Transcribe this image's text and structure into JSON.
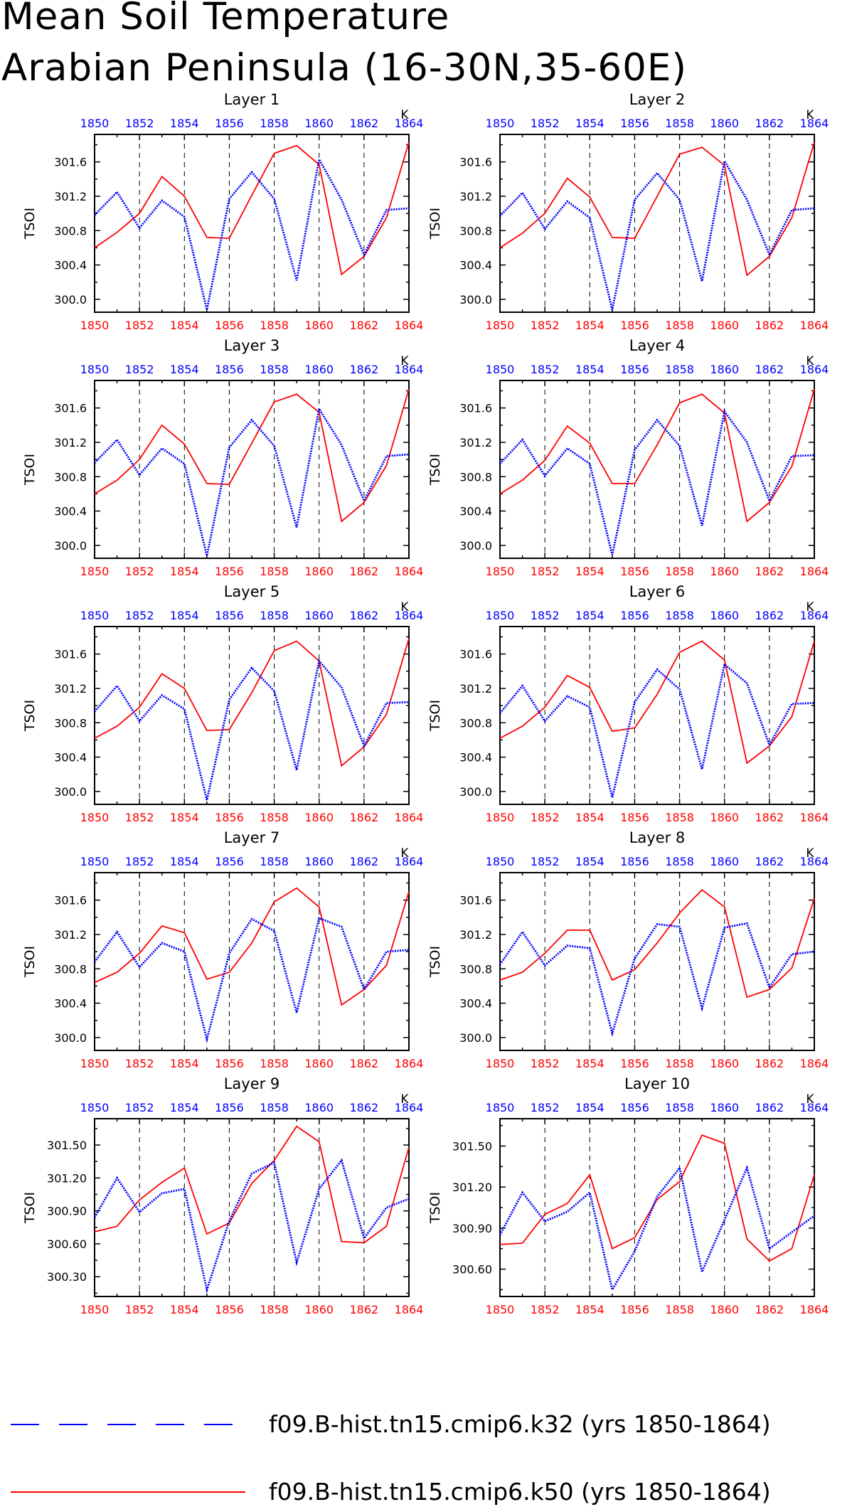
{
  "header": {
    "title_line1": "Mean Soil Temperature",
    "title_line2": "Arabian Peninsula (16-30N,35-60E)"
  },
  "legend": {
    "position": "bottom",
    "entries": [
      {
        "label": "f09.B-hist.tn15.cmip6.k32 (yrs 1850-1864)",
        "color": "#0000ff",
        "style": "dashed"
      },
      {
        "label": "f09.B-hist.tn15.cmip6.k50 (yrs 1850-1864)",
        "color": "#ff0000",
        "style": "solid"
      }
    ]
  },
  "colors": {
    "k32": "#0000ff",
    "k50": "#ff0000",
    "axis": "#000000",
    "grid": "#000000"
  },
  "chart_data": [
    {
      "type": "line",
      "title": "Layer 1",
      "xlabel": "",
      "ylabel": "TSOI",
      "top_axis_label": "K",
      "x": [
        1850,
        1851,
        1852,
        1853,
        1854,
        1855,
        1856,
        1857,
        1858,
        1859,
        1860,
        1861,
        1862,
        1863,
        1864
      ],
      "xlim": [
        1850,
        1864
      ],
      "ylim": [
        299.85,
        301.92
      ],
      "x_ticks": [
        1850,
        1852,
        1854,
        1856,
        1858,
        1860,
        1862,
        1864
      ],
      "y_ticks": [
        "300.0",
        "300.4",
        "300.8",
        "301.2",
        "301.6"
      ],
      "y_tick_values": [
        300.0,
        300.4,
        300.8,
        301.2,
        301.6
      ],
      "grid": "dashed vertical at even years",
      "series": [
        {
          "name": "f09.B-hist.tn15.cmip6.k32 (yrs 1850-1864)",
          "values": [
            300.98,
            301.25,
            300.83,
            301.15,
            300.96,
            299.88,
            301.17,
            301.48,
            301.17,
            300.22,
            301.63,
            301.16,
            300.52,
            301.04,
            301.06
          ]
        },
        {
          "name": "f09.B-hist.tn15.cmip6.k50 (yrs 1850-1864)",
          "values": [
            300.6,
            300.78,
            301.0,
            301.43,
            301.2,
            300.72,
            300.71,
            301.21,
            301.7,
            301.79,
            301.57,
            300.29,
            300.5,
            300.95,
            301.83
          ]
        }
      ]
    },
    {
      "type": "line",
      "title": "Layer 2",
      "xlabel": "",
      "ylabel": "TSOI",
      "top_axis_label": "K",
      "x": [
        1850,
        1851,
        1852,
        1853,
        1854,
        1855,
        1856,
        1857,
        1858,
        1859,
        1860,
        1861,
        1862,
        1863,
        1864
      ],
      "xlim": [
        1850,
        1864
      ],
      "ylim": [
        299.85,
        301.92
      ],
      "x_ticks": [
        1850,
        1852,
        1854,
        1856,
        1858,
        1860,
        1862,
        1864
      ],
      "y_ticks": [
        "300.0",
        "300.4",
        "300.8",
        "301.2",
        "301.6"
      ],
      "y_tick_values": [
        300.0,
        300.4,
        300.8,
        301.2,
        301.6
      ],
      "grid": "dashed vertical at even years",
      "series": [
        {
          "name": "f09.B-hist.tn15.cmip6.k32 (yrs 1850-1864)",
          "values": [
            300.97,
            301.24,
            300.82,
            301.14,
            300.95,
            299.88,
            301.16,
            301.47,
            301.16,
            300.21,
            301.61,
            301.16,
            300.52,
            301.04,
            301.06
          ]
        },
        {
          "name": "f09.B-hist.tn15.cmip6.k50 (yrs 1850-1864)",
          "values": [
            300.6,
            300.77,
            301.0,
            301.41,
            301.19,
            300.72,
            300.71,
            301.2,
            301.69,
            301.77,
            301.56,
            300.28,
            300.5,
            300.95,
            301.83
          ]
        }
      ]
    },
    {
      "type": "line",
      "title": "Layer 3",
      "xlabel": "",
      "ylabel": "TSOI",
      "top_axis_label": "K",
      "x": [
        1850,
        1851,
        1852,
        1853,
        1854,
        1855,
        1856,
        1857,
        1858,
        1859,
        1860,
        1861,
        1862,
        1863,
        1864
      ],
      "xlim": [
        1850,
        1864
      ],
      "ylim": [
        299.85,
        301.92
      ],
      "x_ticks": [
        1850,
        1852,
        1854,
        1856,
        1858,
        1860,
        1862,
        1864
      ],
      "y_ticks": [
        "300.0",
        "300.4",
        "300.8",
        "301.2",
        "301.6"
      ],
      "y_tick_values": [
        300.0,
        300.4,
        300.8,
        301.2,
        301.6
      ],
      "grid": "dashed vertical at even years",
      "series": [
        {
          "name": "f09.B-hist.tn15.cmip6.k32 (yrs 1850-1864)",
          "values": [
            300.96,
            301.23,
            300.82,
            301.13,
            300.95,
            299.88,
            301.14,
            301.46,
            301.16,
            300.21,
            301.59,
            301.17,
            300.52,
            301.04,
            301.06
          ]
        },
        {
          "name": "f09.B-hist.tn15.cmip6.k50 (yrs 1850-1864)",
          "values": [
            300.6,
            300.76,
            301.0,
            301.4,
            301.18,
            300.72,
            300.71,
            301.19,
            301.67,
            301.76,
            301.55,
            300.28,
            300.5,
            300.93,
            301.82
          ]
        }
      ]
    },
    {
      "type": "line",
      "title": "Layer 4",
      "xlabel": "",
      "ylabel": "TSOI",
      "top_axis_label": "K",
      "x": [
        1850,
        1851,
        1852,
        1853,
        1854,
        1855,
        1856,
        1857,
        1858,
        1859,
        1860,
        1861,
        1862,
        1863,
        1864
      ],
      "xlim": [
        1850,
        1864
      ],
      "ylim": [
        299.85,
        301.92
      ],
      "x_ticks": [
        1850,
        1852,
        1854,
        1856,
        1858,
        1860,
        1862,
        1864
      ],
      "y_ticks": [
        "300.0",
        "300.4",
        "300.8",
        "301.2",
        "301.6"
      ],
      "y_tick_values": [
        300.0,
        300.4,
        300.8,
        301.2,
        301.6
      ],
      "grid": "dashed vertical at even years",
      "series": [
        {
          "name": "f09.B-hist.tn15.cmip6.k32 (yrs 1850-1864)",
          "values": [
            300.95,
            301.23,
            300.81,
            301.13,
            300.95,
            299.89,
            301.11,
            301.46,
            301.16,
            300.23,
            301.56,
            301.2,
            300.52,
            301.04,
            301.05
          ]
        },
        {
          "name": "f09.B-hist.tn15.cmip6.k50 (yrs 1850-1864)",
          "values": [
            300.6,
            300.76,
            300.99,
            301.39,
            301.19,
            300.72,
            300.72,
            301.17,
            301.66,
            301.76,
            301.54,
            300.28,
            300.5,
            300.92,
            301.82
          ]
        }
      ]
    },
    {
      "type": "line",
      "title": "Layer 5",
      "xlabel": "",
      "ylabel": "TSOI",
      "top_axis_label": "K",
      "x": [
        1850,
        1851,
        1852,
        1853,
        1854,
        1855,
        1856,
        1857,
        1858,
        1859,
        1860,
        1861,
        1862,
        1863,
        1864
      ],
      "xlim": [
        1850,
        1864
      ],
      "ylim": [
        299.85,
        301.92
      ],
      "x_ticks": [
        1850,
        1852,
        1854,
        1856,
        1858,
        1860,
        1862,
        1864
      ],
      "y_ticks": [
        "300.0",
        "300.4",
        "300.8",
        "301.2",
        "301.6"
      ],
      "y_tick_values": [
        300.0,
        300.4,
        300.8,
        301.2,
        301.6
      ],
      "grid": "dashed vertical at even years",
      "series": [
        {
          "name": "f09.B-hist.tn15.cmip6.k32 (yrs 1850-1864)",
          "values": [
            300.93,
            301.23,
            300.82,
            301.12,
            300.96,
            299.9,
            301.07,
            301.44,
            301.17,
            300.25,
            301.52,
            301.21,
            300.53,
            301.03,
            301.04
          ]
        },
        {
          "name": "f09.B-hist.tn15.cmip6.k50 (yrs 1850-1864)",
          "values": [
            300.62,
            300.76,
            300.98,
            301.37,
            301.2,
            300.71,
            300.72,
            301.15,
            301.64,
            301.75,
            301.52,
            300.3,
            300.52,
            300.9,
            301.78
          ]
        }
      ]
    },
    {
      "type": "line",
      "title": "Layer 6",
      "xlabel": "",
      "ylabel": "TSOI",
      "top_axis_label": "K",
      "x": [
        1850,
        1851,
        1852,
        1853,
        1854,
        1855,
        1856,
        1857,
        1858,
        1859,
        1860,
        1861,
        1862,
        1863,
        1864
      ],
      "xlim": [
        1850,
        1864
      ],
      "ylim": [
        299.85,
        301.92
      ],
      "x_ticks": [
        1850,
        1852,
        1854,
        1856,
        1858,
        1860,
        1862,
        1864
      ],
      "y_ticks": [
        "300.0",
        "300.4",
        "300.8",
        "301.2",
        "301.6"
      ],
      "y_tick_values": [
        300.0,
        300.4,
        300.8,
        301.2,
        301.6
      ],
      "grid": "dashed vertical at even years",
      "series": [
        {
          "name": "f09.B-hist.tn15.cmip6.k32 (yrs 1850-1864)",
          "values": [
            300.91,
            301.23,
            300.82,
            301.11,
            300.98,
            299.93,
            301.04,
            301.42,
            301.19,
            300.26,
            301.48,
            301.26,
            300.54,
            301.02,
            301.03
          ]
        },
        {
          "name": "f09.B-hist.tn15.cmip6.k50 (yrs 1850-1864)",
          "values": [
            300.62,
            300.76,
            300.98,
            301.35,
            301.21,
            300.7,
            300.74,
            301.13,
            301.62,
            301.75,
            301.53,
            300.33,
            300.53,
            300.87,
            301.75
          ]
        }
      ]
    },
    {
      "type": "line",
      "title": "Layer 7",
      "xlabel": "",
      "ylabel": "TSOI",
      "top_axis_label": "K",
      "x": [
        1850,
        1851,
        1852,
        1853,
        1854,
        1855,
        1856,
        1857,
        1858,
        1859,
        1860,
        1861,
        1862,
        1863,
        1864
      ],
      "xlim": [
        1850,
        1864
      ],
      "ylim": [
        299.85,
        301.92
      ],
      "x_ticks": [
        1850,
        1852,
        1854,
        1856,
        1858,
        1860,
        1862,
        1864
      ],
      "y_ticks": [
        "300.0",
        "300.4",
        "300.8",
        "301.2",
        "301.6"
      ],
      "y_tick_values": [
        300.0,
        300.4,
        300.8,
        301.2,
        301.6
      ],
      "grid": "dashed vertical at even years",
      "series": [
        {
          "name": "f09.B-hist.tn15.cmip6.k32 (yrs 1850-1864)",
          "values": [
            300.88,
            301.23,
            300.82,
            301.1,
            301.0,
            299.98,
            300.98,
            301.38,
            301.24,
            300.29,
            301.39,
            301.29,
            300.56,
            301.0,
            301.02
          ]
        },
        {
          "name": "f09.B-hist.tn15.cmip6.k50 (yrs 1850-1864)",
          "values": [
            300.64,
            300.76,
            300.98,
            301.3,
            301.22,
            300.68,
            300.76,
            301.1,
            301.58,
            301.74,
            301.52,
            300.38,
            300.56,
            300.84,
            301.7
          ]
        }
      ]
    },
    {
      "type": "line",
      "title": "Layer 8",
      "xlabel": "",
      "ylabel": "TSOI",
      "top_axis_label": "K",
      "x": [
        1850,
        1851,
        1852,
        1853,
        1854,
        1855,
        1856,
        1857,
        1858,
        1859,
        1860,
        1861,
        1862,
        1863,
        1864
      ],
      "xlim": [
        1850,
        1864
      ],
      "ylim": [
        299.85,
        301.92
      ],
      "x_ticks": [
        1850,
        1852,
        1854,
        1856,
        1858,
        1860,
        1862,
        1864
      ],
      "y_ticks": [
        "300.0",
        "300.4",
        "300.8",
        "301.2",
        "301.6"
      ],
      "y_tick_values": [
        300.0,
        300.4,
        300.8,
        301.2,
        301.6
      ],
      "grid": "dashed vertical at even years",
      "series": [
        {
          "name": "f09.B-hist.tn15.cmip6.k32 (yrs 1850-1864)",
          "values": [
            300.85,
            301.23,
            300.84,
            301.07,
            301.04,
            300.05,
            300.92,
            301.32,
            301.29,
            300.34,
            301.28,
            301.33,
            300.58,
            300.97,
            301.0
          ]
        },
        {
          "name": "f09.B-hist.tn15.cmip6.k50 (yrs 1850-1864)",
          "values": [
            300.67,
            300.76,
            300.98,
            301.25,
            301.25,
            300.67,
            300.79,
            301.1,
            301.45,
            301.72,
            301.52,
            300.47,
            300.56,
            300.81,
            301.62
          ]
        }
      ]
    },
    {
      "type": "line",
      "title": "Layer 9",
      "xlabel": "",
      "ylabel": "TSOI",
      "top_axis_label": "K",
      "x": [
        1850,
        1851,
        1852,
        1853,
        1854,
        1855,
        1856,
        1857,
        1858,
        1859,
        1860,
        1861,
        1862,
        1863,
        1864
      ],
      "xlim": [
        1850,
        1864
      ],
      "ylim": [
        300.12,
        301.74
      ],
      "x_ticks": [
        1850,
        1852,
        1854,
        1856,
        1858,
        1860,
        1862,
        1864
      ],
      "y_ticks": [
        "300.30",
        "300.60",
        "300.90",
        "301.20",
        "301.50"
      ],
      "y_tick_values": [
        300.3,
        300.6,
        300.9,
        301.2,
        301.5
      ],
      "grid": "dashed vertical at even years",
      "series": [
        {
          "name": "f09.B-hist.tn15.cmip6.k32 (yrs 1850-1864)",
          "values": [
            300.84,
            301.2,
            300.89,
            301.06,
            301.1,
            300.18,
            300.81,
            301.24,
            301.34,
            300.43,
            301.1,
            301.36,
            300.65,
            300.93,
            301.01
          ]
        },
        {
          "name": "f09.B-hist.tn15.cmip6.k50 (yrs 1850-1864)",
          "values": [
            300.71,
            300.76,
            301.0,
            301.16,
            301.29,
            300.69,
            300.79,
            301.15,
            301.36,
            301.67,
            301.53,
            300.62,
            300.61,
            300.76,
            301.48
          ]
        }
      ]
    },
    {
      "type": "line",
      "title": "Layer 10",
      "xlabel": "",
      "ylabel": "TSOI",
      "top_axis_label": "K",
      "x": [
        1850,
        1851,
        1852,
        1853,
        1854,
        1855,
        1856,
        1857,
        1858,
        1859,
        1860,
        1861,
        1862,
        1863,
        1864
      ],
      "xlim": [
        1850,
        1864
      ],
      "ylim": [
        300.4,
        301.7
      ],
      "x_ticks": [
        1850,
        1852,
        1854,
        1856,
        1858,
        1860,
        1862,
        1864
      ],
      "y_ticks": [
        "300.60",
        "300.90",
        "301.20",
        "301.50"
      ],
      "y_tick_values": [
        300.6,
        300.9,
        301.2,
        301.5
      ],
      "grid": "dashed vertical at even years",
      "series": [
        {
          "name": "f09.B-hist.tn15.cmip6.k32 (yrs 1850-1864)",
          "values": [
            300.85,
            301.16,
            300.95,
            301.02,
            301.16,
            300.45,
            300.73,
            301.13,
            301.34,
            300.58,
            300.96,
            301.34,
            300.75,
            300.87,
            300.99
          ]
        },
        {
          "name": "f09.B-hist.tn15.cmip6.k50 (yrs 1850-1864)",
          "values": [
            300.78,
            300.79,
            301.0,
            301.08,
            301.29,
            300.75,
            300.83,
            301.11,
            301.24,
            301.58,
            301.52,
            300.82,
            300.66,
            300.75,
            301.29
          ]
        }
      ]
    }
  ]
}
